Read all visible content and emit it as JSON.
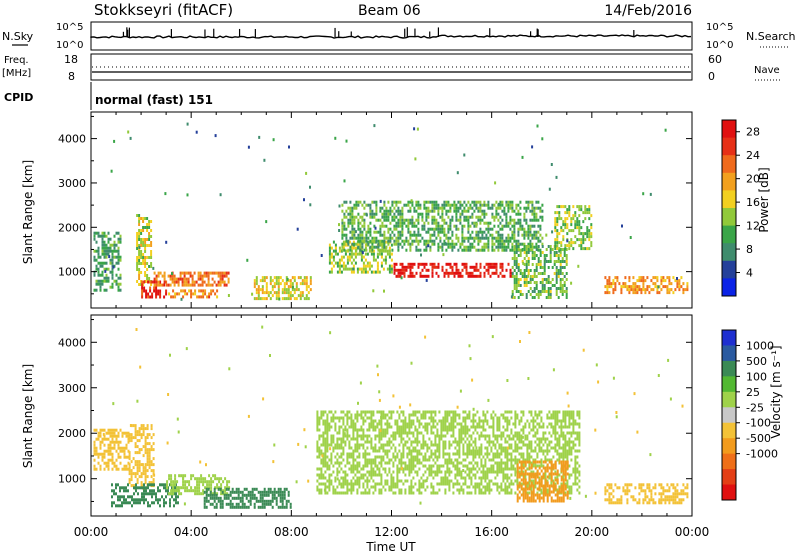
{
  "header": {
    "station": "Stokkseyri (fitACF)",
    "beam": "Beam 06",
    "date": "14/Feb/2016"
  },
  "panel_labels": {
    "nsky": "N.Sky",
    "nsearch": "N.Search",
    "freq_line1": "Freq.",
    "freq_line2": "[MHz]",
    "nave": "Nave",
    "cpid": "CPID",
    "cpid_value": "normal (fast) 151"
  },
  "small_axes": {
    "noise_left_ticks": [
      "10^5",
      "10^0"
    ],
    "noise_right_ticks": [
      "10^5",
      "10^0"
    ],
    "freq_left_ticks": [
      "18",
      "8"
    ],
    "nave_right_ticks": [
      "60",
      "0"
    ]
  },
  "colors": {
    "power": [
      "#0b23e6",
      "#24409a",
      "#3f8c6d",
      "#3aa548",
      "#91c93a",
      "#f2d020",
      "#f2a01e",
      "#ef6a1c",
      "#e63017",
      "#e01010"
    ],
    "velocity": [
      "#1e2fd0",
      "#2a5aa0",
      "#3a8a55",
      "#52b832",
      "#9fd24a",
      "#c8c8c8",
      "#f3c237",
      "#f29b1d",
      "#ef6f18",
      "#e43f16",
      "#e01010"
    ]
  },
  "chart_data": [
    {
      "type": "heatmap",
      "quantity": "Power",
      "ylabel": "Slant Range [km]",
      "xlabel": "Time UT",
      "x_ticks": [
        "00:00",
        "04:00",
        "08:00",
        "12:00",
        "16:00",
        "20:00",
        "00:00"
      ],
      "x_range_hours": [
        0,
        24
      ],
      "y_ticks": [
        1000,
        2000,
        3000,
        4000
      ],
      "y_range_km": [
        180,
        4600
      ],
      "colorbar": {
        "label": "Power [dB]",
        "ticks": [
          4,
          8,
          12,
          16,
          20,
          24,
          28
        ],
        "range": [
          0,
          30
        ]
      },
      "regions": [
        {
          "t0": 0.1,
          "t1": 1.2,
          "r0": 600,
          "r1": 1900,
          "v": 10
        },
        {
          "t0": 1.8,
          "t1": 2.4,
          "r0": 700,
          "r1": 2300,
          "v": 15
        },
        {
          "t0": 2.0,
          "t1": 3.0,
          "r0": 400,
          "r1": 800,
          "v": 27
        },
        {
          "t0": 2.5,
          "t1": 5.5,
          "r0": 700,
          "r1": 1000,
          "v": 22
        },
        {
          "t0": 3.0,
          "t1": 5.0,
          "r0": 400,
          "r1": 600,
          "v": 21
        },
        {
          "t0": 6.5,
          "t1": 8.8,
          "r0": 400,
          "r1": 900,
          "v": 16
        },
        {
          "t0": 9.5,
          "t1": 12.0,
          "r0": 1000,
          "r1": 1700,
          "v": 14
        },
        {
          "t0": 12.0,
          "t1": 16.8,
          "r0": 900,
          "r1": 1200,
          "v": 28
        },
        {
          "t0": 10.0,
          "t1": 18.0,
          "r0": 1500,
          "r1": 2600,
          "v": 11
        },
        {
          "t0": 16.8,
          "t1": 19.0,
          "r0": 400,
          "r1": 1600,
          "v": 12
        },
        {
          "t0": 18.5,
          "t1": 20.0,
          "r0": 1500,
          "r1": 2500,
          "v": 13
        },
        {
          "t0": 20.5,
          "t1": 23.8,
          "r0": 500,
          "r1": 900,
          "v": 20
        }
      ]
    },
    {
      "type": "heatmap",
      "quantity": "Velocity",
      "ylabel": "Slant Range [km]",
      "xlabel": "Time UT",
      "x_ticks": [
        "00:00",
        "04:00",
        "08:00",
        "12:00",
        "16:00",
        "20:00",
        "00:00"
      ],
      "x_range_hours": [
        0,
        24
      ],
      "y_ticks": [
        1000,
        2000,
        3000,
        4000
      ],
      "y_range_km": [
        180,
        4600
      ],
      "colorbar": {
        "label": "Velocity [m s⁻¹]",
        "ticks": [
          1000,
          500,
          100,
          25,
          -25,
          -100,
          -500,
          -1000
        ]
      },
      "regions": [
        {
          "t0": 0.1,
          "t1": 1.5,
          "r0": 1200,
          "r1": 2100,
          "v": -400
        },
        {
          "t0": 1.5,
          "t1": 2.5,
          "r0": 800,
          "r1": 2200,
          "v": -300
        },
        {
          "t0": 0.8,
          "t1": 3.5,
          "r0": 400,
          "r1": 900,
          "v": 150
        },
        {
          "t0": 3.0,
          "t1": 5.5,
          "r0": 700,
          "r1": 1100,
          "v": 0
        },
        {
          "t0": 4.5,
          "t1": 8.0,
          "r0": 400,
          "r1": 800,
          "v": 100
        },
        {
          "t0": 9.0,
          "t1": 19.5,
          "r0": 700,
          "r1": 2500,
          "v": 0
        },
        {
          "t0": 17.0,
          "t1": 19.0,
          "r0": 500,
          "r1": 1400,
          "v": -600
        },
        {
          "t0": 20.5,
          "t1": 23.8,
          "r0": 500,
          "r1": 900,
          "v": -300
        }
      ]
    }
  ]
}
